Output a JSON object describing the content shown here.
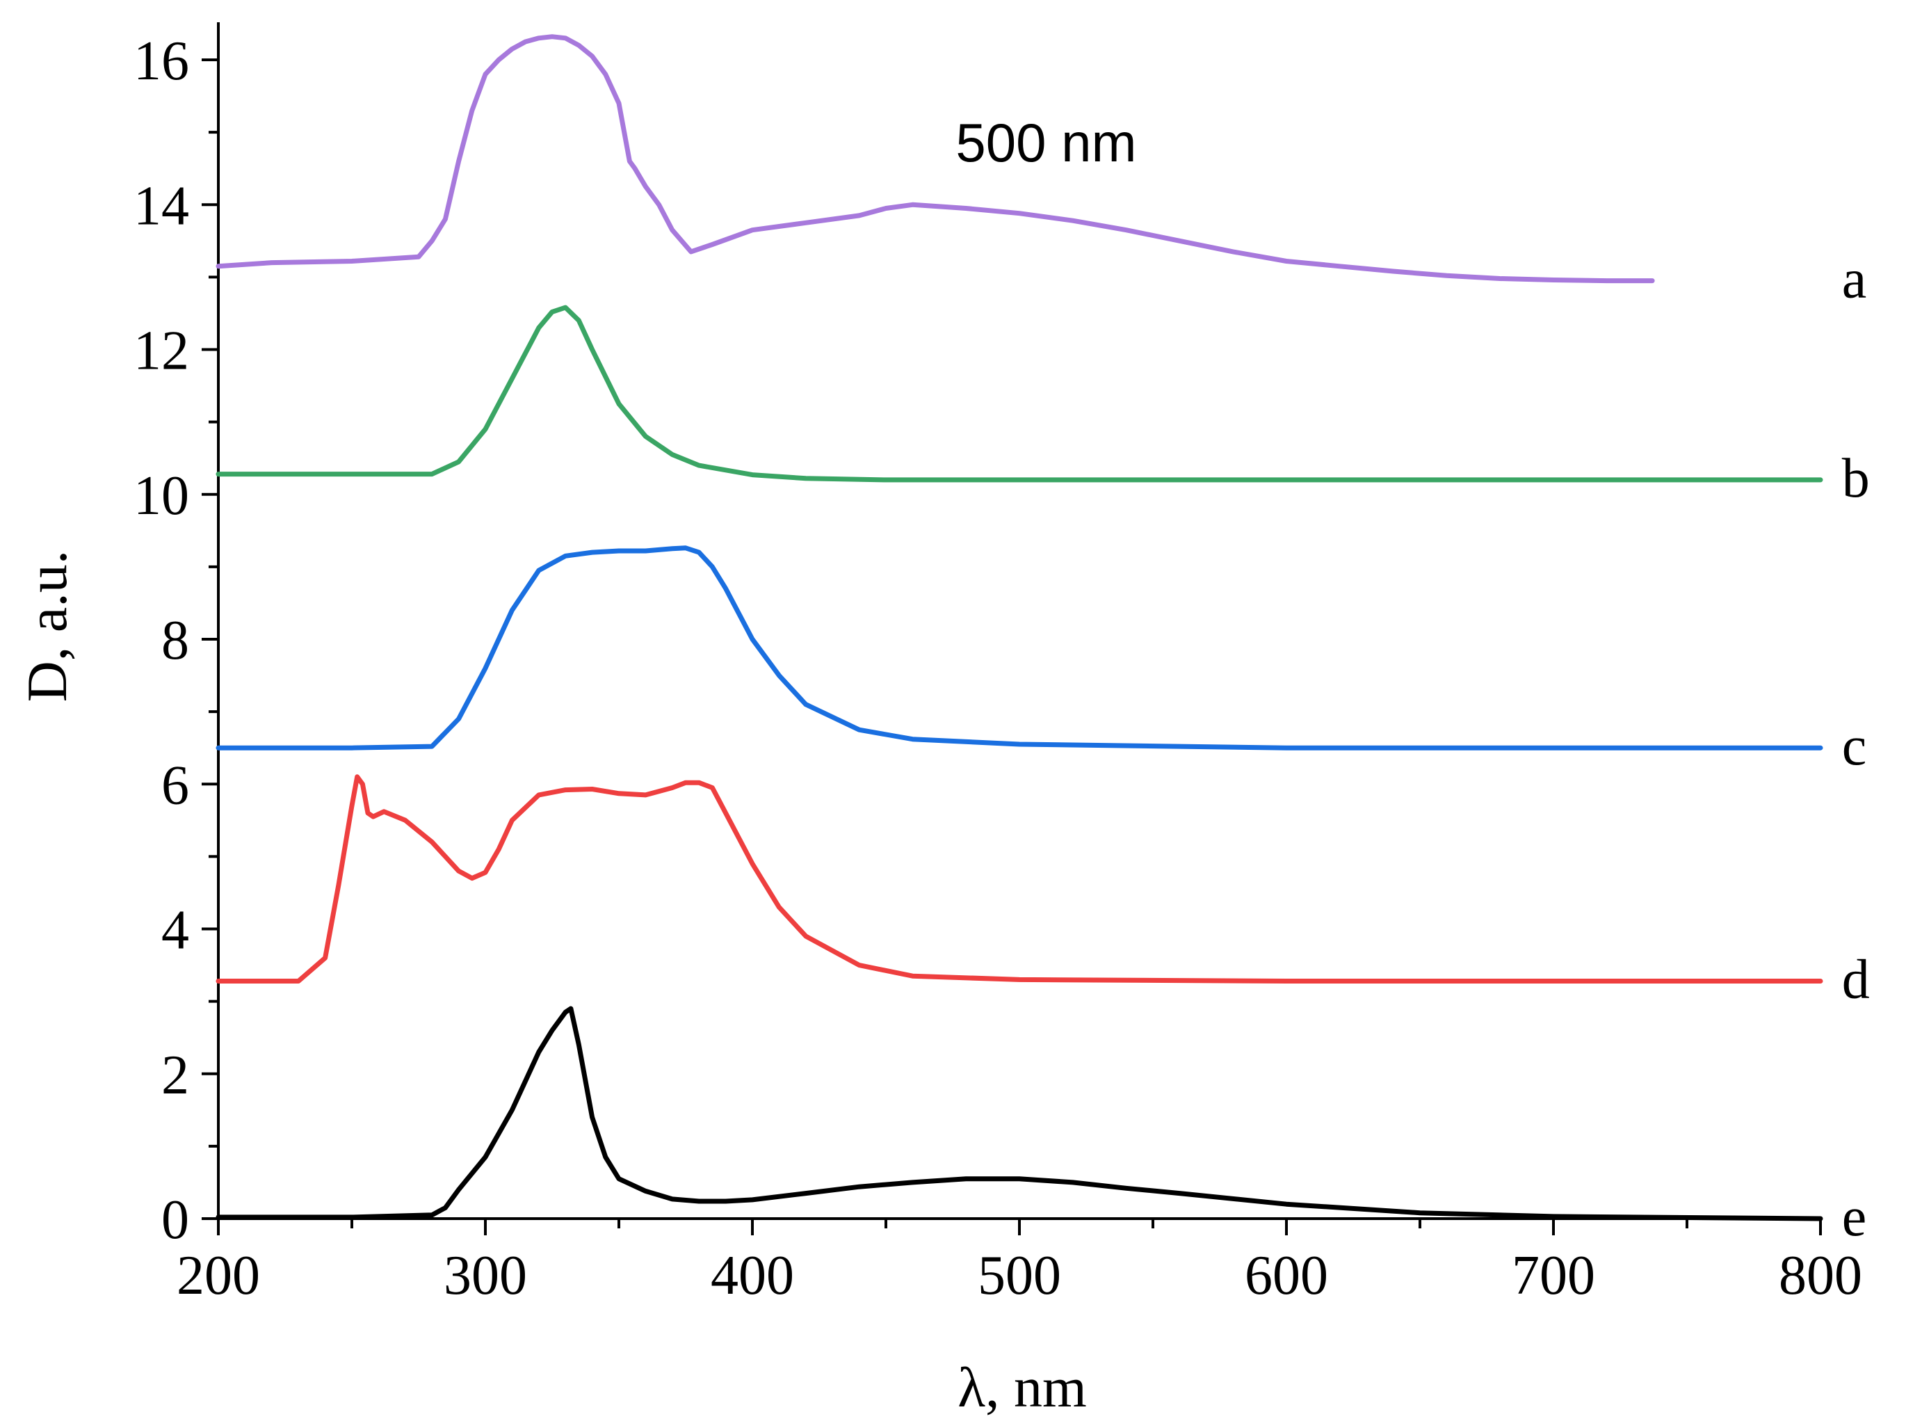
{
  "chart_data": {
    "type": "line",
    "title": "",
    "xlabel": "λ, nm",
    "ylabel": "D, a.u.",
    "xlim": [
      200,
      800
    ],
    "ylim": [
      0,
      16.5
    ],
    "x_ticks": [
      200,
      300,
      400,
      500,
      600,
      700,
      800
    ],
    "y_ticks": [
      0,
      2,
      4,
      6,
      8,
      10,
      12,
      14,
      16
    ],
    "x_tick_labels": [
      "200",
      "300",
      "400",
      "500",
      "600",
      "700",
      "800"
    ],
    "y_tick_labels": [
      "0",
      "2",
      "4",
      "6",
      "8",
      "10",
      "12",
      "14",
      "16"
    ],
    "grid": false,
    "annotations": [
      {
        "text": "500 nm",
        "x": 510,
        "y": 14.6
      }
    ],
    "series": [
      {
        "name": "a",
        "color": "#a779dc",
        "label_x": 808,
        "x": [
          200,
          220,
          250,
          275,
          280,
          285,
          290,
          295,
          300,
          305,
          310,
          315,
          320,
          325,
          330,
          335,
          340,
          345,
          350,
          352,
          354,
          356,
          360,
          365,
          370,
          377,
          385,
          400,
          420,
          440,
          450,
          460,
          480,
          500,
          520,
          540,
          560,
          580,
          600,
          620,
          640,
          660,
          680,
          700,
          720,
          737
        ],
        "y": [
          13.15,
          13.2,
          13.22,
          13.28,
          13.5,
          13.8,
          14.6,
          15.3,
          15.8,
          16.0,
          16.15,
          16.25,
          16.3,
          16.32,
          16.3,
          16.2,
          16.05,
          15.8,
          15.4,
          15.0,
          14.6,
          14.5,
          14.25,
          14.0,
          13.65,
          13.35,
          13.45,
          13.65,
          13.75,
          13.85,
          13.95,
          14.0,
          13.95,
          13.88,
          13.78,
          13.65,
          13.5,
          13.35,
          13.22,
          13.15,
          13.08,
          13.02,
          12.98,
          12.96,
          12.95,
          12.95
        ]
      },
      {
        "name": "b",
        "color": "#3aa564",
        "label_x": 808,
        "x": [
          200,
          250,
          280,
          290,
          300,
          310,
          320,
          325,
          330,
          335,
          340,
          350,
          360,
          370,
          380,
          400,
          420,
          450,
          500,
          600,
          700,
          800
        ],
        "y": [
          10.28,
          10.28,
          10.28,
          10.45,
          10.9,
          11.6,
          12.3,
          12.52,
          12.58,
          12.4,
          12.0,
          11.25,
          10.8,
          10.55,
          10.4,
          10.27,
          10.22,
          10.2,
          10.2,
          10.2,
          10.2,
          10.2
        ]
      },
      {
        "name": "c",
        "color": "#1a6fe0",
        "label_x": 808,
        "x": [
          200,
          250,
          280,
          290,
          300,
          310,
          320,
          330,
          340,
          350,
          360,
          370,
          375,
          380,
          385,
          390,
          400,
          410,
          420,
          440,
          460,
          500,
          600,
          700,
          800
        ],
        "y": [
          6.5,
          6.5,
          6.52,
          6.9,
          7.6,
          8.4,
          8.95,
          9.15,
          9.2,
          9.22,
          9.22,
          9.25,
          9.26,
          9.2,
          9.0,
          8.7,
          8.0,
          7.5,
          7.1,
          6.75,
          6.62,
          6.55,
          6.5,
          6.5,
          6.5
        ]
      },
      {
        "name": "d",
        "color": "#ee3f3f",
        "label_x": 808,
        "x": [
          200,
          230,
          240,
          245,
          250,
          252,
          254,
          256,
          258,
          262,
          270,
          280,
          290,
          295,
          300,
          305,
          310,
          320,
          330,
          340,
          350,
          360,
          370,
          375,
          380,
          385,
          390,
          400,
          410,
          420,
          440,
          460,
          500,
          600,
          700,
          800
        ],
        "y": [
          3.28,
          3.28,
          3.6,
          4.6,
          5.7,
          6.1,
          6.0,
          5.6,
          5.55,
          5.62,
          5.5,
          5.2,
          4.8,
          4.7,
          4.78,
          5.1,
          5.5,
          5.85,
          5.92,
          5.93,
          5.87,
          5.85,
          5.95,
          6.02,
          6.02,
          5.95,
          5.6,
          4.9,
          4.3,
          3.9,
          3.5,
          3.35,
          3.3,
          3.28,
          3.28,
          3.28
        ]
      },
      {
        "name": "e",
        "color": "#000000",
        "label_x": 808,
        "x": [
          200,
          250,
          280,
          285,
          290,
          300,
          310,
          320,
          325,
          330,
          332,
          335,
          340,
          345,
          350,
          360,
          370,
          380,
          390,
          400,
          420,
          440,
          460,
          480,
          500,
          520,
          540,
          560,
          600,
          650,
          700,
          800
        ],
        "y": [
          0.02,
          0.02,
          0.05,
          0.15,
          0.4,
          0.85,
          1.5,
          2.3,
          2.6,
          2.85,
          2.9,
          2.4,
          1.4,
          0.85,
          0.55,
          0.38,
          0.27,
          0.24,
          0.24,
          0.26,
          0.35,
          0.44,
          0.5,
          0.55,
          0.55,
          0.5,
          0.42,
          0.35,
          0.2,
          0.08,
          0.03,
          0.0
        ]
      }
    ]
  }
}
